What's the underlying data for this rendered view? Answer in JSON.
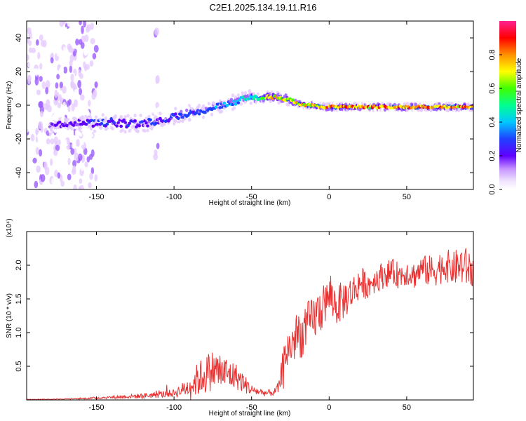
{
  "figure": {
    "title": "C2E1.2025.134.19.11.R16"
  },
  "chart_data": [
    {
      "type": "heatmap",
      "title": "C2E1.2025.134.19.11.R16",
      "xlabel": "Height of straight line (km)",
      "ylabel": "Frequency (Hz)",
      "xlim": [
        -195,
        93
      ],
      "ylim": [
        -50,
        50
      ],
      "xticks": [
        -150,
        -100,
        -50,
        0,
        50
      ],
      "yticks": [
        -40,
        -20,
        0,
        20,
        40
      ],
      "colorbar": {
        "label": "Normalized spectral amplitude",
        "range": [
          0,
          1
        ],
        "ticks": [
          "0.0",
          "0.2",
          "0.4",
          "0.6",
          "0.8"
        ],
        "colormap": "rainbow",
        "colors": [
          "#ffffff",
          "#e6ccff",
          "#9c5cff",
          "#6000ff",
          "#2040ff",
          "#00c8ff",
          "#00ff90",
          "#40ff00",
          "#ffff00",
          "#ff9000",
          "#ff0000",
          "#ff2090"
        ]
      },
      "ridge": {
        "x": [
          -178,
          -160,
          -150,
          -140,
          -130,
          -120,
          -110,
          -100,
          -90,
          -80,
          -70,
          -60,
          -55,
          -50,
          -45,
          -40,
          -35,
          -30,
          -25,
          -20,
          -15,
          -10,
          -5,
          0,
          10,
          20,
          30,
          40,
          50,
          60,
          70,
          80,
          93
        ],
        "y": [
          -12,
          -10,
          -11,
          -10,
          -11,
          -11,
          -9,
          -7,
          -5,
          -3,
          0,
          2,
          4,
          5,
          4,
          5,
          5,
          4,
          3,
          1,
          0,
          0,
          -1,
          -1,
          -1,
          -1,
          -1,
          -1,
          -1,
          -1,
          -1,
          -1,
          -1
        ],
        "spread": [
          5,
          6,
          6,
          7,
          7,
          7,
          6,
          6,
          6,
          5,
          5,
          5,
          4,
          4,
          3,
          3,
          3,
          3,
          3,
          2,
          2,
          2,
          2,
          2,
          2,
          2,
          2,
          2,
          2,
          2,
          2,
          2,
          2
        ],
        "peak": [
          0.35,
          0.35,
          0.4,
          0.4,
          0.4,
          0.4,
          0.4,
          0.45,
          0.45,
          0.45,
          0.5,
          0.55,
          0.6,
          0.62,
          0.7,
          0.8,
          0.85,
          0.85,
          0.85,
          0.9,
          0.9,
          0.95,
          0.95,
          1,
          0.95,
          0.95,
          0.95,
          0.95,
          0.95,
          0.95,
          0.95,
          0.95,
          0.95
        ]
      },
      "noise_bands_x": [
        [
          -195,
          -150
        ],
        [
          -112,
          -110
        ]
      ]
    },
    {
      "type": "line",
      "title": "",
      "xlabel": "Height of straight line (km)",
      "ylabel": "SNR (10 * v/v)",
      "yscale_note": "(x10⁴)",
      "xlim": [
        -195,
        93
      ],
      "ylim": [
        0,
        2.5
      ],
      "xticks": [
        -150,
        -100,
        -50,
        0,
        50
      ],
      "yticks": [
        0.5,
        1.0,
        1.5,
        2.0
      ],
      "ytick_labels": [
        "0.5",
        "1.0",
        "1.5",
        "2.0"
      ],
      "color": "#e83030",
      "series": [
        {
          "name": "",
          "x": [
            -195,
            -180,
            -160,
            -140,
            -120,
            -110,
            -100,
            -95,
            -90,
            -85,
            -80,
            -75,
            -70,
            -65,
            -60,
            -55,
            -50,
            -45,
            -40,
            -35,
            -32,
            -30,
            -28,
            -25,
            -22,
            -20,
            -17,
            -15,
            -12,
            -10,
            -7,
            -5,
            -2,
            0,
            5,
            10,
            15,
            20,
            25,
            30,
            35,
            40,
            45,
            50,
            55,
            60,
            65,
            70,
            75,
            80,
            85,
            90,
            93
          ],
          "y": [
            0.01,
            0.01,
            0.02,
            0.04,
            0.06,
            0.08,
            0.1,
            0.15,
            0.2,
            0.3,
            0.38,
            0.45,
            0.42,
            0.38,
            0.35,
            0.25,
            0.15,
            0.12,
            0.1,
            0.12,
            0.2,
            0.5,
            0.7,
            0.8,
            0.9,
            1.0,
            0.95,
            1.1,
            1.15,
            1.2,
            1.3,
            1.35,
            1.45,
            1.55,
            1.4,
            1.5,
            1.6,
            1.75,
            1.7,
            1.8,
            1.85,
            1.9,
            1.85,
            1.9,
            1.85,
            1.95,
            1.9,
            1.95,
            2.0,
            1.95,
            2.0,
            1.95,
            1.9
          ],
          "noise": [
            0.005,
            0.005,
            0.01,
            0.02,
            0.04,
            0.05,
            0.06,
            0.1,
            0.15,
            0.25,
            0.3,
            0.3,
            0.3,
            0.25,
            0.2,
            0.15,
            0.08,
            0.06,
            0.05,
            0.06,
            0.1,
            0.25,
            0.3,
            0.3,
            0.35,
            0.35,
            0.35,
            0.35,
            0.35,
            0.35,
            0.35,
            0.35,
            0.3,
            0.3,
            0.3,
            0.3,
            0.25,
            0.25,
            0.2,
            0.2,
            0.2,
            0.2,
            0.2,
            0.2,
            0.2,
            0.2,
            0.25,
            0.25,
            0.25,
            0.25,
            0.3,
            0.3,
            0.3
          ]
        }
      ]
    }
  ]
}
